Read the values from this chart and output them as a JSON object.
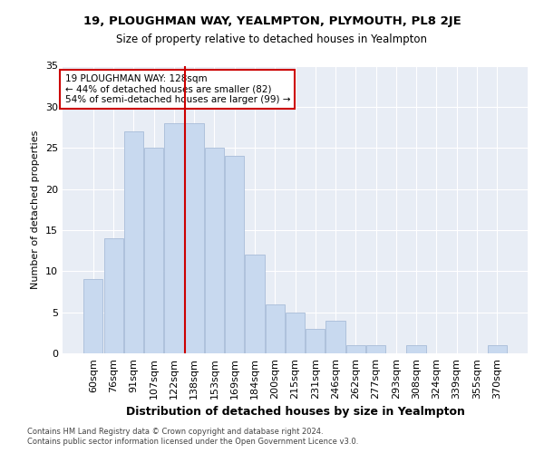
{
  "title1": "19, PLOUGHMAN WAY, YEALMPTON, PLYMOUTH, PL8 2JE",
  "title2": "Size of property relative to detached houses in Yealmpton",
  "xlabel": "Distribution of detached houses by size in Yealmpton",
  "ylabel": "Number of detached properties",
  "categories": [
    "60sqm",
    "76sqm",
    "91sqm",
    "107sqm",
    "122sqm",
    "138sqm",
    "153sqm",
    "169sqm",
    "184sqm",
    "200sqm",
    "215sqm",
    "231sqm",
    "246sqm",
    "262sqm",
    "277sqm",
    "293sqm",
    "308sqm",
    "324sqm",
    "339sqm",
    "355sqm",
    "370sqm"
  ],
  "values": [
    9,
    14,
    27,
    25,
    28,
    28,
    25,
    24,
    12,
    6,
    5,
    3,
    4,
    1,
    1,
    0,
    1,
    0,
    0,
    0,
    1
  ],
  "bar_color": "#c8d9ef",
  "bar_edge_color": "#a8bcd8",
  "redline_color": "#cc0000",
  "annotation_title": "19 PLOUGHMAN WAY: 128sqm",
  "annotation_line1": "← 44% of detached houses are smaller (82)",
  "annotation_line2": "54% of semi-detached houses are larger (99) →",
  "annotation_box_color": "#ffffff",
  "annotation_box_edge": "#cc0000",
  "ylim": [
    0,
    35
  ],
  "yticks": [
    0,
    5,
    10,
    15,
    20,
    25,
    30,
    35
  ],
  "background_color": "#e8edf5",
  "footer1": "Contains HM Land Registry data © Crown copyright and database right 2024.",
  "footer2": "Contains public sector information licensed under the Open Government Licence v3.0."
}
